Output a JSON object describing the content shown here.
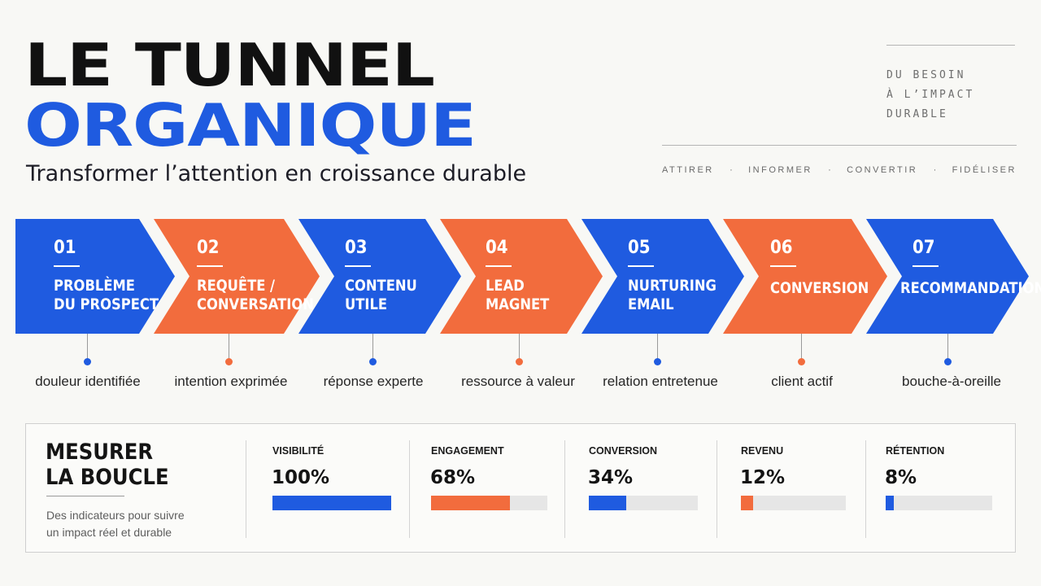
{
  "header": {
    "title_line1": "LE TUNNEL",
    "title_line2": "ORGANIQUE",
    "subtitle": "Transformer l’attention en croissance durable",
    "tagline": [
      "DU BESOIN",
      "À L’IMPACT",
      "DURABLE"
    ],
    "stage_words": [
      "ATTIRER",
      "INFORMER",
      "CONVERTIR",
      "FIDÉLISER"
    ],
    "stage_separator": "·"
  },
  "colors": {
    "blue": "#1f5be0",
    "orange": "#f26c3d",
    "title_dark": "#111111",
    "background": "#f8f8f5"
  },
  "steps": [
    {
      "number": "01",
      "label": [
        "PROBLÈME",
        "DU PROSPECT"
      ],
      "color": "blue",
      "caption": "douleur identifiée"
    },
    {
      "number": "02",
      "label": [
        "REQUÊTE /",
        "CONVERSATION"
      ],
      "color": "orange",
      "caption": "intention exprimée"
    },
    {
      "number": "03",
      "label": [
        "CONTENU",
        "UTILE"
      ],
      "color": "blue",
      "caption": "réponse experte"
    },
    {
      "number": "04",
      "label": [
        "LEAD",
        "MAGNET"
      ],
      "color": "orange",
      "caption": "ressource à valeur"
    },
    {
      "number": "05",
      "label": [
        "NURTURING",
        "EMAIL"
      ],
      "color": "blue",
      "caption": "relation entretenue"
    },
    {
      "number": "06",
      "label": [
        "CONVERSION"
      ],
      "color": "orange",
      "caption": "client actif"
    },
    {
      "number": "07",
      "label": [
        "RECOMMANDATION"
      ],
      "color": "blue",
      "caption": "bouche-à-oreille"
    }
  ],
  "panel": {
    "title": [
      "MESURER",
      "LA BOUCLE"
    ],
    "description": [
      "Des indicateurs pour suivre",
      "un impact réel et durable"
    ]
  },
  "metrics": [
    {
      "label": "VISIBILITÉ",
      "value": "100%",
      "fraction": 1.0,
      "color": "blue"
    },
    {
      "label": "ENGAGEMENT",
      "value": "68%",
      "fraction": 0.68,
      "color": "orange"
    },
    {
      "label": "CONVERSION",
      "value": "34%",
      "fraction": 0.34,
      "color": "blue"
    },
    {
      "label": "REVENU",
      "value": "12%",
      "fraction": 0.12,
      "color": "orange"
    },
    {
      "label": "RÉTENTION",
      "value": "8%",
      "fraction": 0.08,
      "color": "blue"
    }
  ]
}
